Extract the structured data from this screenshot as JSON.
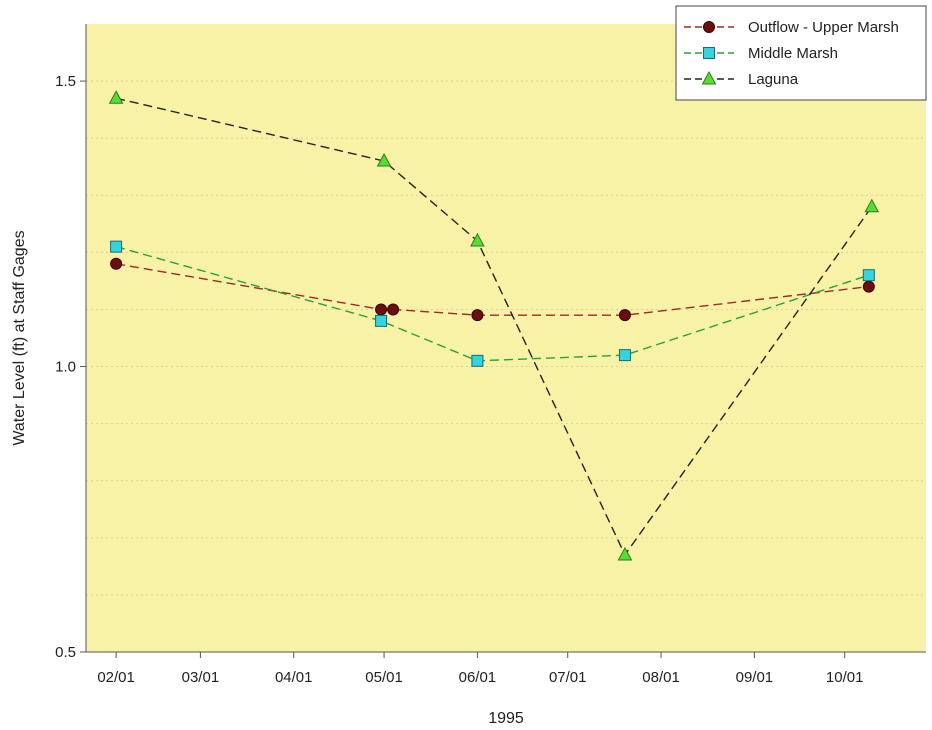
{
  "chart_data": {
    "type": "line",
    "xlabel": "1995",
    "ylabel": "Water Level (ft) at Staff Gages",
    "ylim": [
      0.5,
      1.6
    ],
    "y_ticks": [
      0.5,
      1.0,
      1.5
    ],
    "y_tick_labels": [
      "0.5",
      "1.0",
      "1.5"
    ],
    "y_minor_grid": [
      0.6,
      0.7,
      0.8,
      0.9,
      1.1,
      1.2,
      1.3,
      1.4
    ],
    "xlim": [
      "1995-01-22",
      "1995-10-28"
    ],
    "x_ticks": [
      "1995-02-01",
      "1995-03-01",
      "1995-04-01",
      "1995-05-01",
      "1995-06-01",
      "1995-07-01",
      "1995-08-01",
      "1995-09-01",
      "1995-10-01"
    ],
    "x_tick_labels": [
      "02/01",
      "03/01",
      "04/01",
      "05/01",
      "06/01",
      "07/01",
      "08/01",
      "09/01",
      "10/01"
    ],
    "plot_background": "#f8f2a6",
    "grid": true,
    "legend_position": "top-right",
    "series": [
      {
        "name": "Outflow - Upper Marsh",
        "color": "#9b2a2a",
        "marker": "circle",
        "marker_color": "#6b0e0e",
        "x": [
          "1995-02-01",
          "1995-04-30",
          "1995-05-04",
          "1995-06-01",
          "1995-07-20",
          "1995-10-09"
        ],
        "y": [
          1.18,
          1.1,
          1.1,
          1.09,
          1.09,
          1.14
        ]
      },
      {
        "name": "Middle Marsh",
        "color": "#2e9e3a",
        "marker": "square",
        "marker_color": "#33d4e0",
        "x": [
          "1995-02-01",
          "1995-04-30",
          "1995-06-01",
          "1995-07-20",
          "1995-10-09"
        ],
        "y": [
          1.21,
          1.08,
          1.01,
          1.02,
          1.16
        ]
      },
      {
        "name": "Laguna",
        "color": "#222222",
        "marker": "triangle",
        "marker_color": "#55dd33",
        "x": [
          "1995-02-01",
          "1995-05-01",
          "1995-06-01",
          "1995-07-20",
          "1995-10-10"
        ],
        "y": [
          1.47,
          1.36,
          1.22,
          0.67,
          1.28
        ]
      }
    ]
  }
}
